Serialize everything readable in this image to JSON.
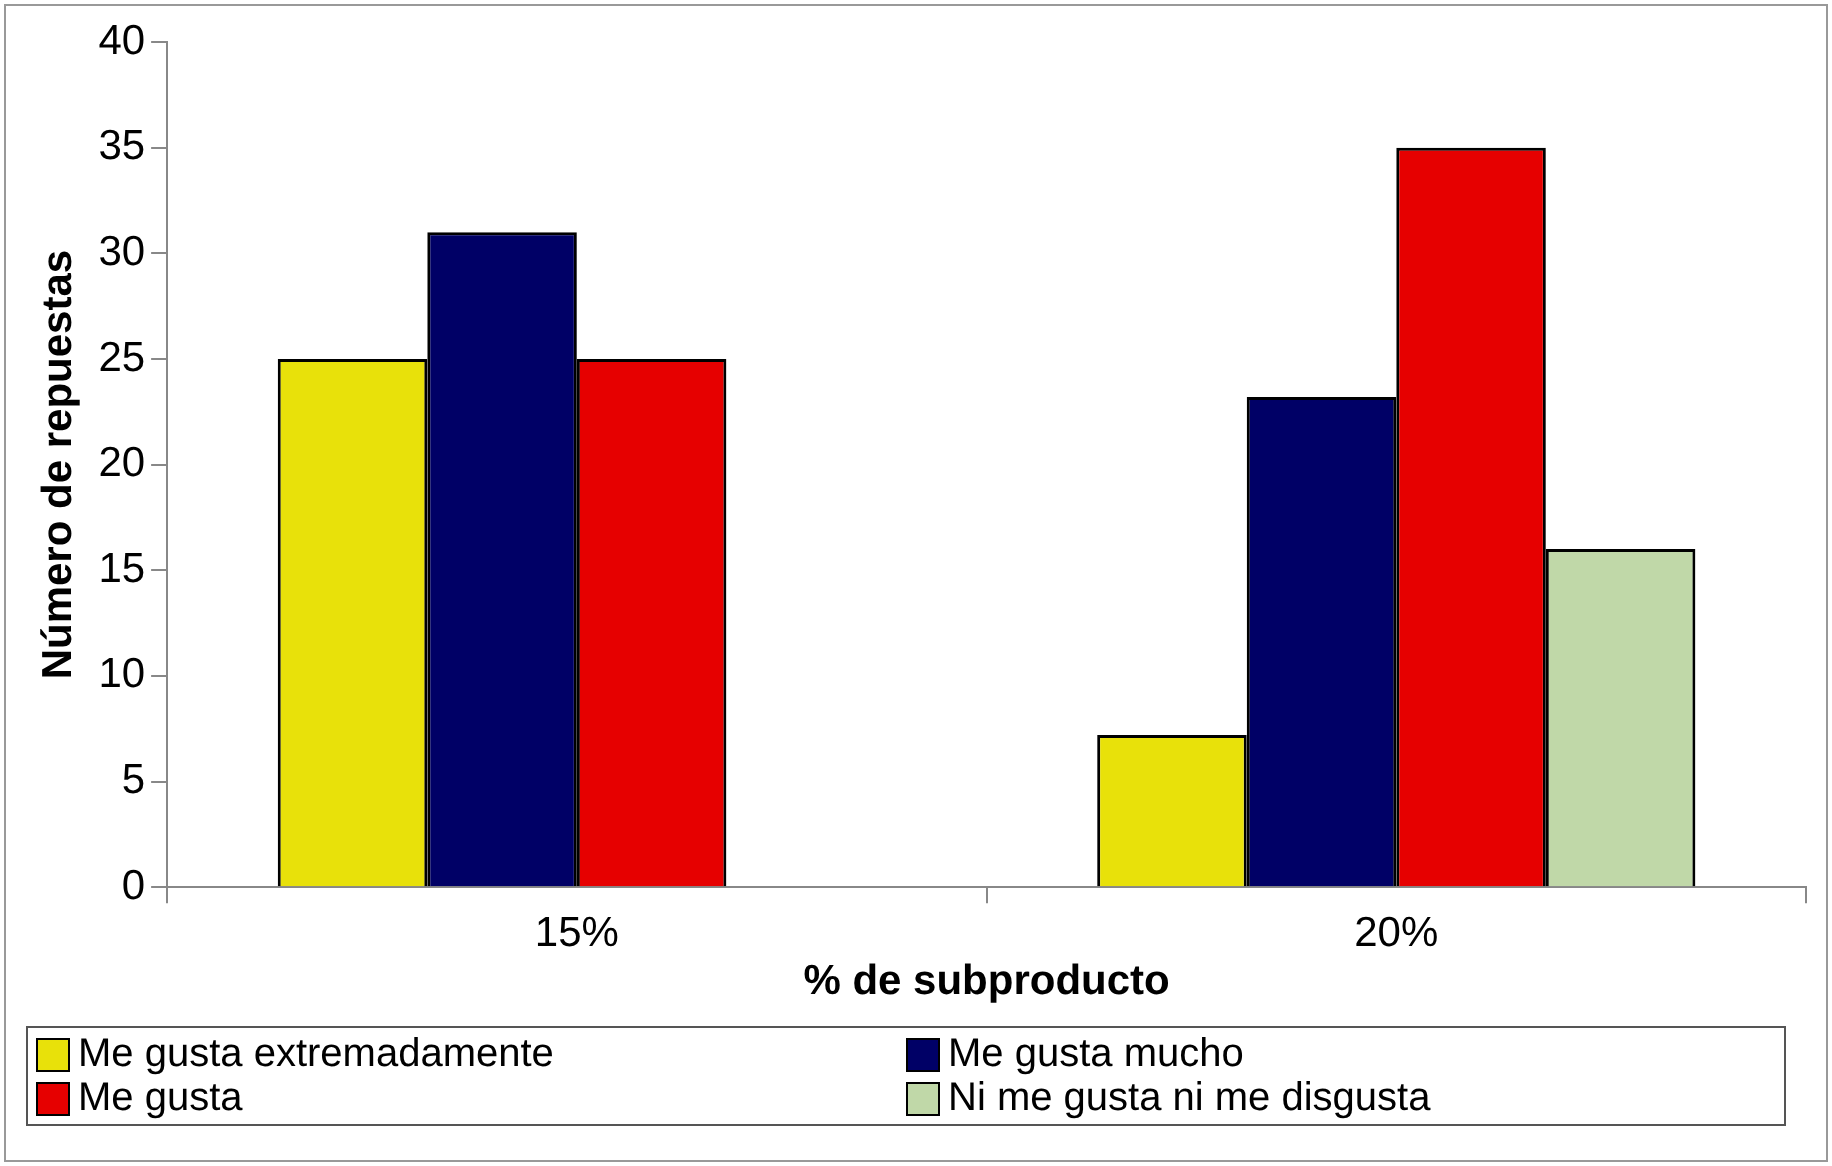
{
  "chart_data": {
    "type": "bar",
    "xlabel": "% de subproducto",
    "ylabel": "Número de repuestas",
    "categories": [
      "15%",
      "20%"
    ],
    "series": [
      {
        "name": "Me gusta extremadamente",
        "color": "#e8e10a",
        "values": [
          25,
          7.2
        ]
      },
      {
        "name": "Me gusta mucho",
        "color": "#000066",
        "values": [
          31,
          23.2
        ]
      },
      {
        "name": "Me gusta",
        "color": "#e60000",
        "values": [
          25,
          35
        ]
      },
      {
        "name": "Ni me gusta ni me disgusta",
        "color": "#c0d8a8",
        "values": [
          null,
          16
        ]
      }
    ],
    "ylim": [
      0,
      40
    ],
    "yticks": [
      0,
      5,
      10,
      15,
      20,
      25,
      30,
      35,
      40
    ],
    "grid": false,
    "legend": "bottom"
  }
}
